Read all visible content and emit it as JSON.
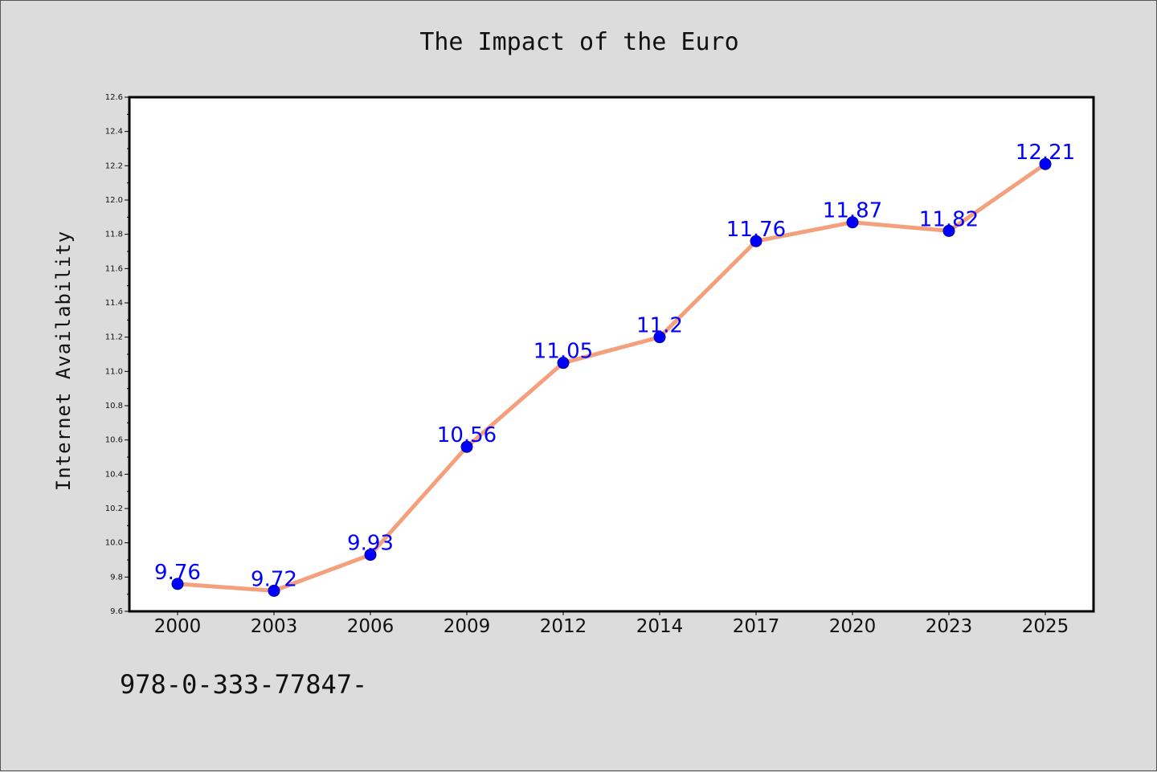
{
  "chart_data": {
    "type": "line",
    "title": "The Impact of the Euro",
    "xlabel": "",
    "ylabel": "Internet Availability",
    "categories": [
      "2000",
      "2003",
      "2006",
      "2009",
      "2012",
      "2014",
      "2017",
      "2020",
      "2023",
      "2025"
    ],
    "series": [
      {
        "values": [
          9.76,
          9.72,
          9.93,
          10.56,
          11.05,
          11.2,
          11.76,
          11.87,
          11.82,
          12.21
        ]
      }
    ],
    "data_labels": [
      "9.76",
      "9.72",
      "9.93",
      "10.56",
      "11.05",
      "11.2",
      "11.76",
      "11.87",
      "11.82",
      "12.21"
    ],
    "ylim": [
      9.6,
      12.6
    ],
    "yticks": [
      "9.6",
      "9.8",
      "10.0",
      "10.2",
      "10.4",
      "10.6",
      "10.8",
      "11.0",
      "11.2",
      "11.4",
      "11.6",
      "11.8",
      "12.0",
      "12.2",
      "12.4",
      "12.6"
    ],
    "grid": false,
    "legend": "none",
    "colors": {
      "line": "#f4a07c",
      "marker": "#0000ff",
      "label": "#0000ff",
      "background": "#dcdcdc",
      "plot_area": "#ffffff"
    }
  },
  "caption": "978-0-333-77847-"
}
